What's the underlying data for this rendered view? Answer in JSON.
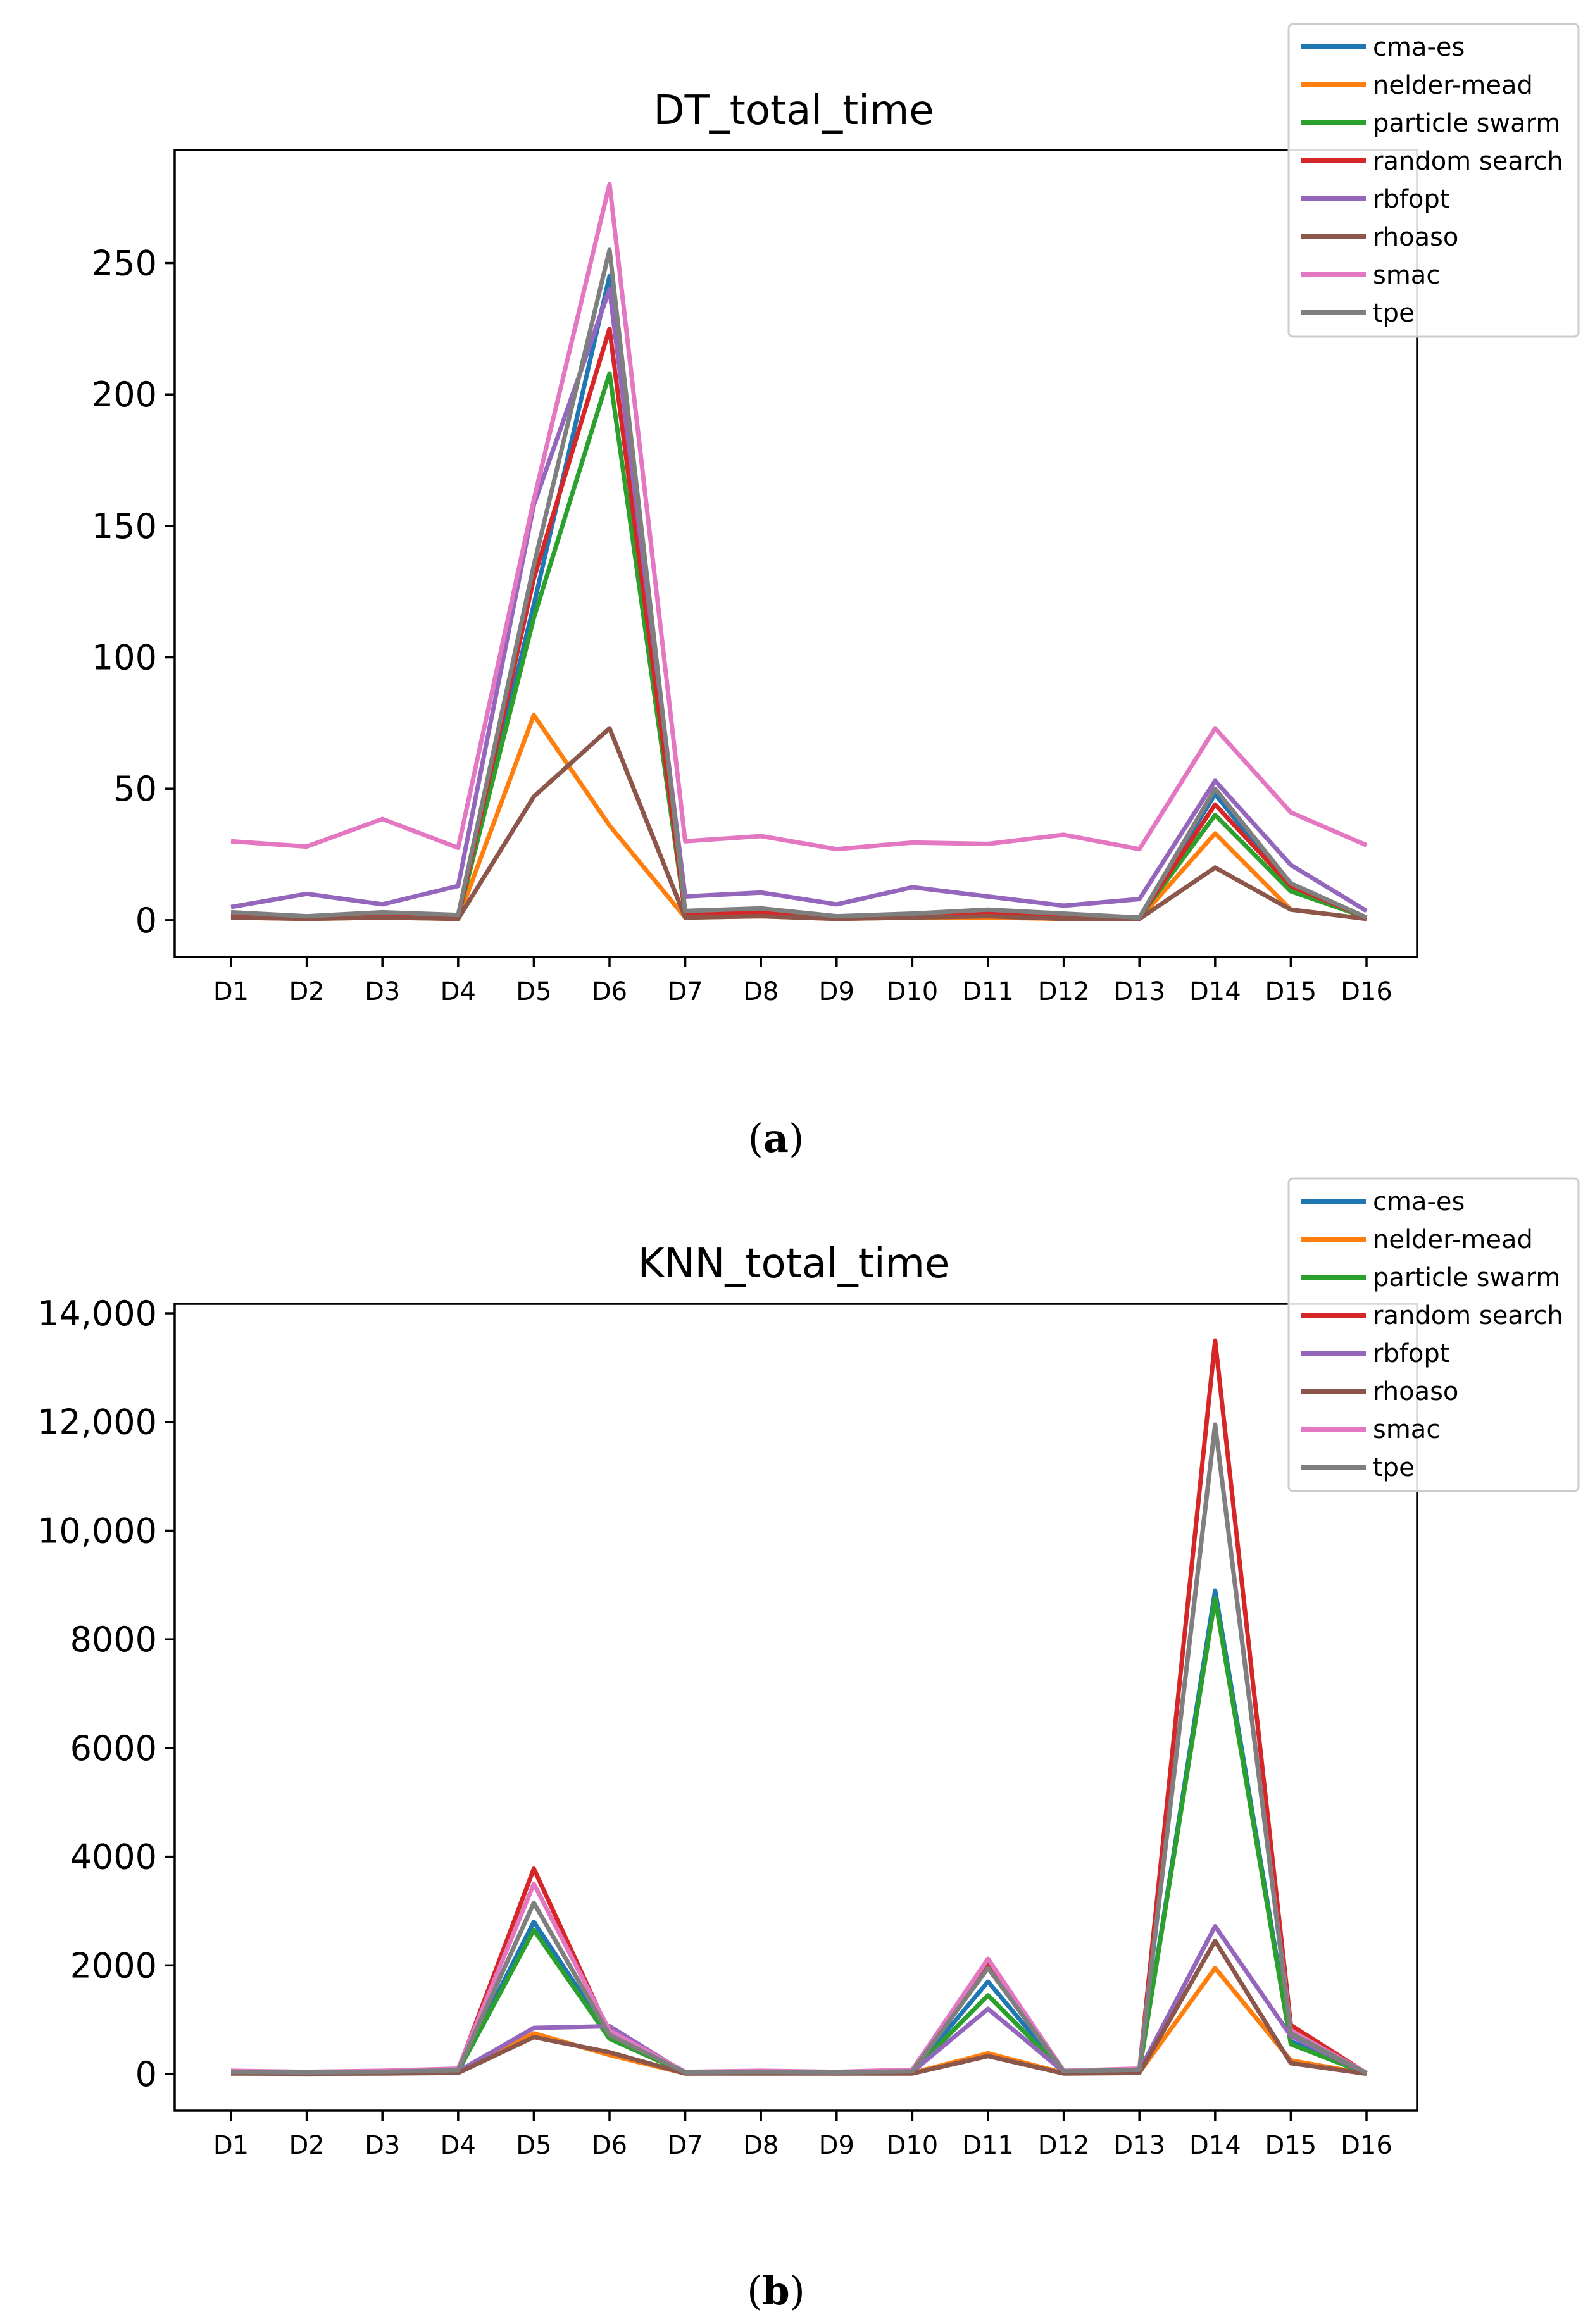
{
  "chart_data": [
    {
      "type": "line",
      "title": "DT_total_time",
      "caption_letter": "a",
      "xlabel": "",
      "ylabel": "",
      "categories": [
        "D1",
        "D2",
        "D3",
        "D4",
        "D5",
        "D6",
        "D7",
        "D8",
        "D9",
        "D10",
        "D11",
        "D12",
        "D13",
        "D14",
        "D15",
        "D16"
      ],
      "ylim": [
        -14,
        293
      ],
      "yticks": [
        0,
        50,
        100,
        150,
        200,
        250
      ],
      "ytick_labels": [
        "0",
        "50",
        "100",
        "150",
        "200",
        "250"
      ],
      "grid": false,
      "legend_position": "top-right",
      "series": [
        {
          "name": "cma-es",
          "color": "#1f77b4",
          "values": [
            2,
            1,
            2,
            1,
            120,
            245,
            2,
            3,
            1,
            2,
            3,
            2,
            1,
            48,
            12,
            1
          ]
        },
        {
          "name": "nelder-mead",
          "color": "#ff7f0e",
          "values": [
            1,
            0.5,
            1,
            0.5,
            78,
            36,
            1,
            1.5,
            0.5,
            1,
            1,
            0.5,
            0.5,
            33,
            4,
            0.5
          ]
        },
        {
          "name": "particle swarm",
          "color": "#2ca02c",
          "values": [
            2,
            1,
            2,
            1,
            115,
            208,
            2,
            3,
            1,
            2,
            3,
            2,
            1,
            40,
            11,
            1
          ]
        },
        {
          "name": "random search",
          "color": "#d62728",
          "values": [
            2,
            1,
            2,
            1,
            130,
            225,
            2,
            3,
            1,
            2,
            3,
            2,
            1,
            44,
            13,
            1
          ]
        },
        {
          "name": "rbfopt",
          "color": "#9467bd",
          "values": [
            5,
            10,
            6,
            13,
            158,
            240,
            9,
            10.5,
            6,
            12.5,
            9,
            5.5,
            8,
            53,
            21,
            3.5
          ]
        },
        {
          "name": "rhoaso",
          "color": "#8c564b",
          "values": [
            1,
            0.5,
            1,
            0.5,
            47,
            73,
            1,
            1.5,
            0.5,
            1,
            1.5,
            0.5,
            0.5,
            20,
            4,
            0.5
          ]
        },
        {
          "name": "smac",
          "color": "#e377c2",
          "values": [
            30,
            28,
            38.5,
            27.5,
            160,
            280,
            30,
            32,
            27,
            29.5,
            29,
            32.5,
            27,
            73,
            41,
            28.5
          ]
        },
        {
          "name": "tpe",
          "color": "#7f7f7f",
          "values": [
            3,
            1.5,
            3,
            2,
            135,
            255,
            3.5,
            4.5,
            1.5,
            2.5,
            4,
            2.5,
            1,
            50,
            14,
            1
          ]
        }
      ]
    },
    {
      "type": "line",
      "title": "KNN_total_time",
      "caption_letter": "b",
      "xlabel": "",
      "ylabel": "",
      "categories": [
        "D1",
        "D2",
        "D3",
        "D4",
        "D5",
        "D6",
        "D7",
        "D8",
        "D9",
        "D10",
        "D11",
        "D12",
        "D13",
        "D14",
        "D15",
        "D16"
      ],
      "ylim": [
        -675,
        14175
      ],
      "yticks": [
        0,
        2000,
        4000,
        6000,
        8000,
        10000,
        12000,
        14000
      ],
      "ytick_labels": [
        "0",
        "2000",
        "4000",
        "6000",
        "8000",
        "10,000",
        "12,000",
        "14,000"
      ],
      "grid": false,
      "legend_position": "top-right",
      "series": [
        {
          "name": "cma-es",
          "color": "#1f77b4",
          "values": [
            30,
            20,
            30,
            50,
            2800,
            700,
            20,
            30,
            20,
            40,
            1700,
            40,
            60,
            8900,
            600,
            10
          ]
        },
        {
          "name": "nelder-mead",
          "color": "#ff7f0e",
          "values": [
            20,
            10,
            20,
            30,
            750,
            350,
            10,
            20,
            10,
            20,
            380,
            20,
            30,
            1950,
            250,
            5
          ]
        },
        {
          "name": "particle swarm",
          "color": "#2ca02c",
          "values": [
            30,
            20,
            30,
            50,
            2650,
            650,
            20,
            30,
            20,
            40,
            1450,
            40,
            60,
            8750,
            550,
            10
          ]
        },
        {
          "name": "random search",
          "color": "#d62728",
          "values": [
            40,
            30,
            40,
            70,
            3780,
            750,
            30,
            40,
            30,
            50,
            2050,
            50,
            80,
            13500,
            900,
            15
          ]
        },
        {
          "name": "rbfopt",
          "color": "#9467bd",
          "values": [
            30,
            20,
            30,
            50,
            850,
            880,
            20,
            30,
            20,
            40,
            1200,
            40,
            60,
            2720,
            700,
            10
          ]
        },
        {
          "name": "rhoaso",
          "color": "#8c564b",
          "values": [
            10,
            5,
            10,
            20,
            680,
            400,
            10,
            10,
            10,
            10,
            330,
            10,
            20,
            2450,
            200,
            5
          ]
        },
        {
          "name": "smac",
          "color": "#e377c2",
          "values": [
            60,
            40,
            60,
            100,
            3500,
            800,
            40,
            60,
            40,
            80,
            2120,
            60,
            100,
            11950,
            800,
            20
          ]
        },
        {
          "name": "tpe",
          "color": "#7f7f7f",
          "values": [
            40,
            30,
            40,
            70,
            3150,
            720,
            30,
            40,
            30,
            50,
            1950,
            50,
            80,
            11950,
            750,
            15
          ]
        }
      ]
    }
  ]
}
